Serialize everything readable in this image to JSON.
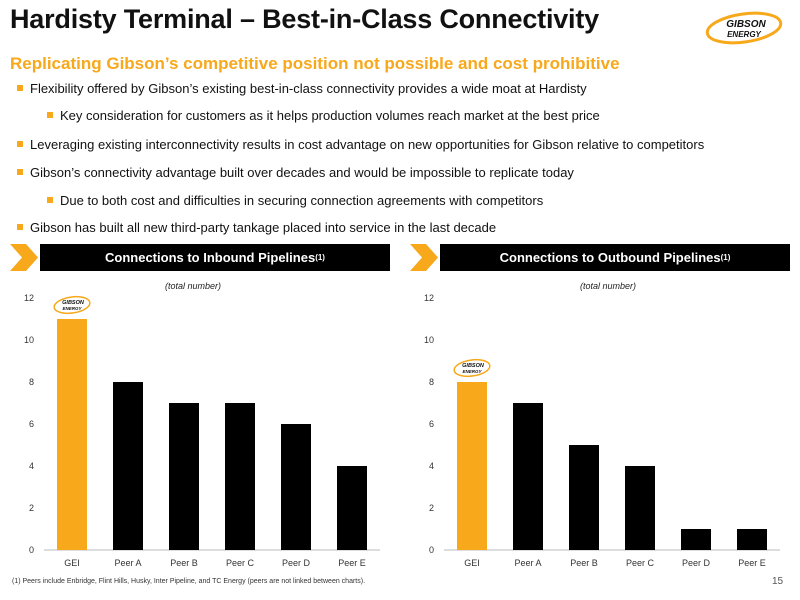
{
  "title": "Hardisty Terminal – Best-in-Class Connectivity",
  "subtitle": "Replicating Gibson’s competitive position not possible and cost prohibitive",
  "logo": {
    "line1": "GIBSON",
    "line2": "ENERGY"
  },
  "bullets": [
    {
      "level": 1,
      "text": "Flexibility offered by Gibson’s existing best-in-class connectivity provides a wide moat at Hardisty"
    },
    {
      "level": 2,
      "text": "Key consideration for customers as it helps production volumes reach market at the best price"
    },
    {
      "level": 1,
      "text": "Leveraging existing interconnectivity results in cost advantage on new opportunities for Gibson relative to competitors"
    },
    {
      "level": 1,
      "text": "Gibson’s connectivity advantage built over decades and would be impossible to replicate today"
    },
    {
      "level": 2,
      "text": "Due to both cost and difficulties in securing connection agreements with competitors"
    },
    {
      "level": 1,
      "text": "Gibson has built all new third-party tankage placed into service in the last decade"
    }
  ],
  "colors": {
    "accent": "#F7A81B",
    "bar": "#000000"
  },
  "chart_data": [
    {
      "type": "bar",
      "title": "Connections to Inbound Pipelines",
      "title_sup": "(1)",
      "subtitle": "(total number)",
      "categories": [
        "GEI",
        "Peer A",
        "Peer B",
        "Peer C",
        "Peer D",
        "Peer E"
      ],
      "values": [
        11,
        8,
        7,
        7,
        6,
        4
      ],
      "highlight_index": 0,
      "ylim": [
        0,
        12
      ],
      "yticks": [
        0,
        2,
        4,
        6,
        8,
        10,
        12
      ],
      "grid": false
    },
    {
      "type": "bar",
      "title": "Connections to Outbound Pipelines",
      "title_sup": "(1)",
      "subtitle": "(total number)",
      "categories": [
        "GEI",
        "Peer A",
        "Peer B",
        "Peer C",
        "Peer D",
        "Peer E"
      ],
      "values": [
        8,
        7,
        5,
        4,
        1,
        1
      ],
      "highlight_index": 0,
      "ylim": [
        0,
        12
      ],
      "yticks": [
        0,
        2,
        4,
        6,
        8,
        10,
        12
      ],
      "grid": false
    }
  ],
  "footnote": "(1) Peers include Enbridge, Flint Hills, Husky, Inter Pipeline, and TC Energy (peers are not linked between charts).",
  "page_number": "15"
}
